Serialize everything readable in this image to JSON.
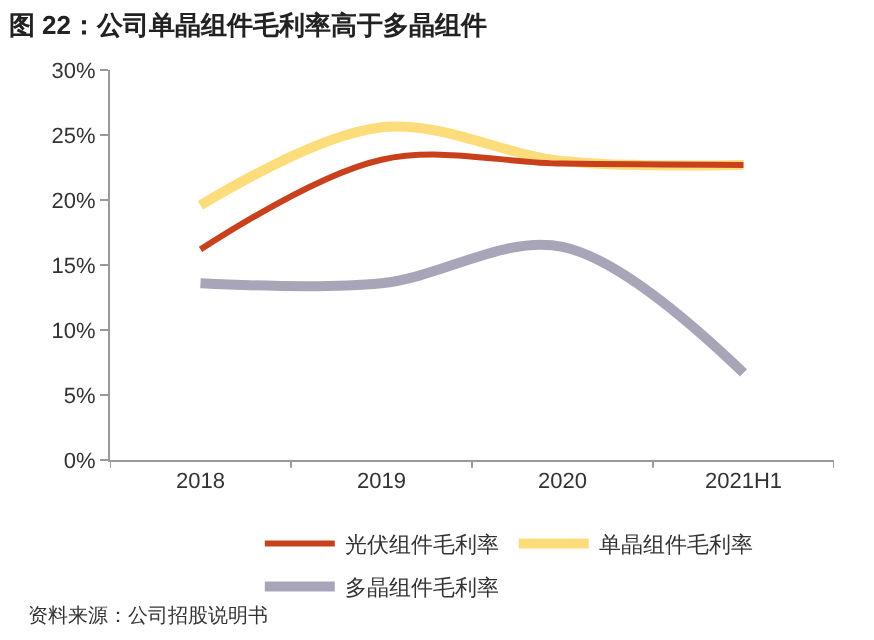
{
  "chart_data": {
    "type": "line",
    "title": "图 22：公司单晶组件毛利率高于多晶组件",
    "categories": [
      "2018",
      "2019",
      "2020",
      "2021H1"
    ],
    "series": [
      {
        "name": "光伏组件毛利率",
        "color": "#c9401c",
        "values": [
          16.2,
          23.1,
          22.8,
          22.7
        ]
      },
      {
        "name": "单晶组件毛利率",
        "color": "#fddc7c",
        "values": [
          19.6,
          25.6,
          23.0,
          22.7
        ]
      },
      {
        "name": "多晶组件毛利率",
        "color": "#a9a5b8",
        "values": [
          13.6,
          13.6,
          16.4,
          6.7
        ]
      }
    ],
    "ylim": [
      0,
      30
    ],
    "yticks": [
      {
        "value": 0,
        "label": "0%"
      },
      {
        "value": 5,
        "label": "5%"
      },
      {
        "value": 10,
        "label": "10%"
      },
      {
        "value": 15,
        "label": "15%"
      },
      {
        "value": 20,
        "label": "20%"
      },
      {
        "value": 25,
        "label": "25%"
      },
      {
        "value": 30,
        "label": "30%"
      }
    ],
    "grid": false,
    "legend": "bottom",
    "marker": "none",
    "line_style": "solid",
    "annotations": [
      "资料来源：公司招股说明书"
    ]
  }
}
